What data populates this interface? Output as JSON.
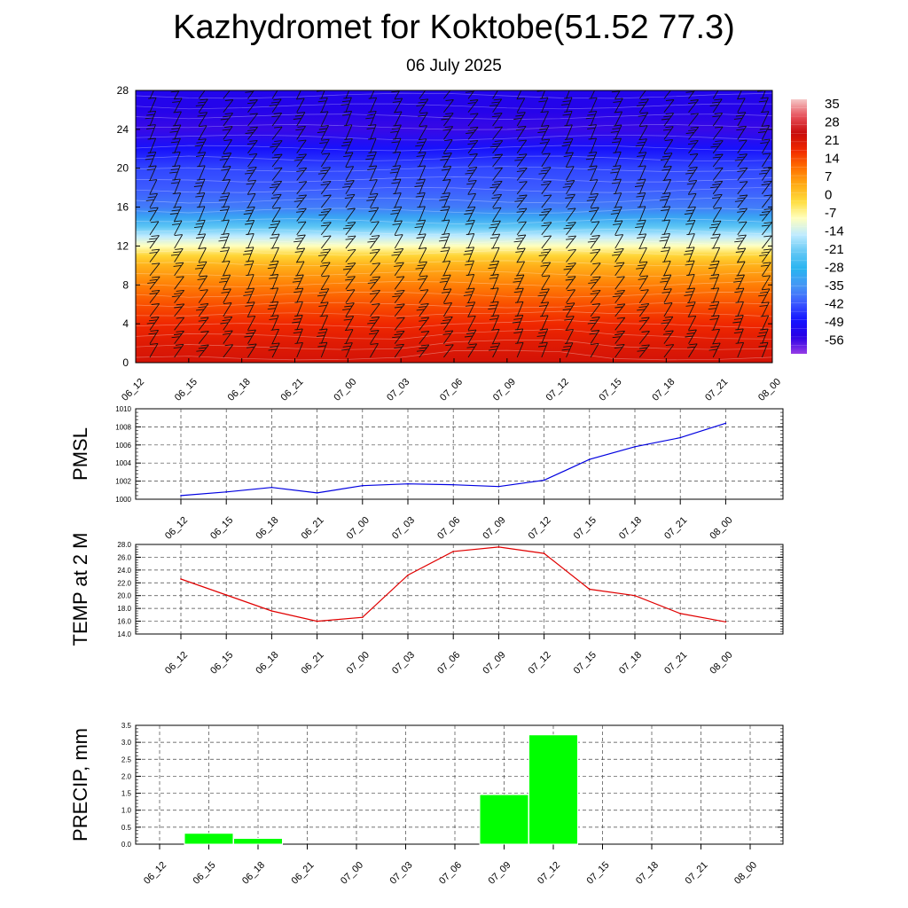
{
  "page": {
    "title": "Kazhydromet for Koktobe(51.52 77.3)",
    "subtitle": "06 July 2025"
  },
  "colors": {
    "pmsl_line": "#0000e0",
    "temp_line": "#e00000",
    "precip_bar": "#00ff00",
    "grid": "#333333"
  },
  "chart_data": [
    {
      "id": "cross-section",
      "type": "heatmap",
      "x_tick_labels": [
        "06_12",
        "06_15",
        "06_18",
        "06_21",
        "07_00",
        "07_03",
        "07_06",
        "07_09",
        "07_12",
        "07_15",
        "07_18",
        "07_21",
        "08_00"
      ],
      "y_tick_labels": [
        "0",
        "4",
        "8",
        "12",
        "16",
        "20",
        "24",
        "28"
      ],
      "ylim": [
        0,
        28
      ],
      "colorbar_labels": [
        "35",
        "28",
        "21",
        "14",
        "7",
        "0",
        "-7",
        "-14",
        "-21",
        "-28",
        "-35",
        "-42",
        "-49",
        "-56"
      ],
      "colorbar_range": [
        -63,
        42
      ],
      "temperature_profile": [
        [
          0,
          26
        ],
        [
          2,
          24
        ],
        [
          4,
          21
        ],
        [
          6,
          17
        ],
        [
          8,
          12
        ],
        [
          10,
          6
        ],
        [
          11,
          1
        ],
        [
          12,
          -7
        ],
        [
          13,
          -14
        ],
        [
          14,
          -22
        ],
        [
          15,
          -32
        ],
        [
          16,
          -38
        ],
        [
          18,
          -42
        ],
        [
          20,
          -44
        ],
        [
          22,
          -50
        ],
        [
          24,
          -57
        ],
        [
          26,
          -55
        ],
        [
          28,
          -54
        ]
      ],
      "wind_barbs": "shown"
    },
    {
      "id": "pmsl",
      "type": "line",
      "ylabel": "PMSL",
      "ylim": [
        1000,
        1010
      ],
      "y_ticks": [
        "1000",
        "1002",
        "1004",
        "1006",
        "1008",
        "1010"
      ],
      "categories": [
        "06_12",
        "06_15",
        "06_18",
        "06_21",
        "07_00",
        "07_03",
        "07_06",
        "07_09",
        "07_12",
        "07_15",
        "07_18",
        "07_21",
        "08_00"
      ],
      "values": [
        1000.4,
        1000.8,
        1001.3,
        1000.7,
        1001.5,
        1001.7,
        1001.6,
        1001.4,
        1002.1,
        1004.4,
        1005.8,
        1006.8,
        1008.4
      ],
      "grid": true
    },
    {
      "id": "temp2m",
      "type": "line",
      "ylabel": "TEMP at 2 M",
      "ylim": [
        14.0,
        28.0
      ],
      "y_ticks": [
        "14.0",
        "16.0",
        "18.0",
        "20.0",
        "22.0",
        "24.0",
        "26.0",
        "28.0"
      ],
      "categories": [
        "06_12",
        "06_15",
        "06_18",
        "06_21",
        "07_00",
        "07_03",
        "07_06",
        "07_09",
        "07_12",
        "07_15",
        "07_18",
        "07_21",
        "08_00"
      ],
      "values": [
        22.6,
        20.1,
        17.6,
        16.0,
        16.6,
        23.2,
        26.9,
        27.6,
        26.6,
        21.0,
        20.0,
        17.2,
        15.9
      ],
      "grid": true
    },
    {
      "id": "precip",
      "type": "bar",
      "ylabel": "PRECIP, mm",
      "ylim": [
        0.0,
        3.5
      ],
      "y_ticks": [
        "0.0",
        "0.5",
        "1.0",
        "1.5",
        "2.0",
        "2.5",
        "3.0",
        "3.5"
      ],
      "categories": [
        "06_12",
        "06_15",
        "06_18",
        "06_21",
        "07_00",
        "07_03",
        "07_06",
        "07_09",
        "07_12",
        "07_15",
        "07_18",
        "07_21",
        "08_00"
      ],
      "values": [
        0,
        0.32,
        0.17,
        0,
        0,
        0,
        0,
        1.46,
        3.22,
        0,
        0,
        0,
        0
      ],
      "grid": true
    }
  ]
}
